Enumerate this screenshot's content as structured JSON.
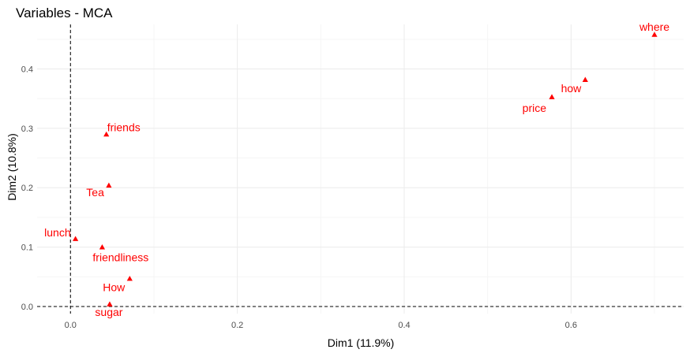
{
  "chart_data": {
    "type": "scatter",
    "title": "Variables - MCA",
    "xlabel": "Dim1 (11.9%)",
    "ylabel": "Dim2 (10.8%)",
    "xlim": [
      -0.04,
      0.735
    ],
    "ylim": [
      -0.012,
      0.475
    ],
    "x_ticks": [
      0.0,
      0.2,
      0.4,
      0.6
    ],
    "x_tick_labels": [
      "0.0",
      "0.2",
      "0.4",
      "0.6"
    ],
    "y_ticks": [
      0.0,
      0.1,
      0.2,
      0.3,
      0.4
    ],
    "y_tick_labels": [
      "0.0",
      "0.1",
      "0.2",
      "0.3",
      "0.4"
    ],
    "grid": true,
    "reference_lines": {
      "x": 0,
      "y": 0
    },
    "marker": "triangle",
    "color": "#ff0000",
    "points": [
      {
        "label": "where",
        "x": 0.7,
        "y": 0.458
      },
      {
        "label": "how",
        "x": 0.617,
        "y": 0.382
      },
      {
        "label": "price",
        "x": 0.577,
        "y": 0.353
      },
      {
        "label": "friends",
        "x": 0.043,
        "y": 0.29
      },
      {
        "label": "Tea",
        "x": 0.046,
        "y": 0.204
      },
      {
        "label": "lunch",
        "x": 0.006,
        "y": 0.114
      },
      {
        "label": "friendliness",
        "x": 0.038,
        "y": 0.1
      },
      {
        "label": "How",
        "x": 0.071,
        "y": 0.047
      },
      {
        "label": "sugar",
        "x": 0.047,
        "y": 0.004
      }
    ]
  }
}
